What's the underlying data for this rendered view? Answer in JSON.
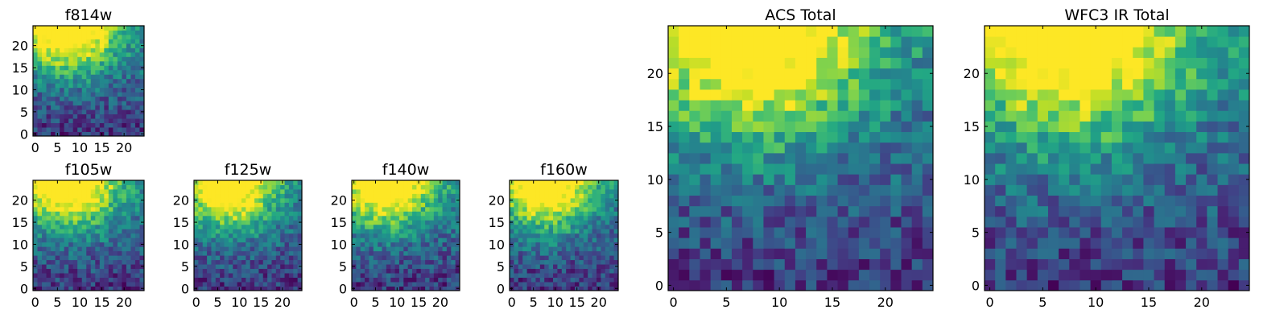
{
  "colormap": "viridis",
  "chart_data": [
    {
      "id": "f814w",
      "type": "heatmap",
      "title": "f814w",
      "grid_size": [
        25,
        25
      ],
      "xlim": [
        -0.5,
        24.5
      ],
      "ylim": [
        -0.5,
        24.5
      ],
      "xticks": [
        0,
        5,
        10,
        15,
        20
      ],
      "yticks": [
        0,
        5,
        10,
        15,
        20
      ],
      "grid": false
    },
    {
      "id": "f105w",
      "type": "heatmap",
      "title": "f105w",
      "grid_size": [
        25,
        25
      ],
      "xlim": [
        -0.5,
        24.5
      ],
      "ylim": [
        -0.5,
        24.5
      ],
      "xticks": [
        0,
        5,
        10,
        15,
        20
      ],
      "yticks": [
        0,
        5,
        10,
        15,
        20
      ],
      "grid": false
    },
    {
      "id": "f125w",
      "type": "heatmap",
      "title": "f125w",
      "grid_size": [
        25,
        25
      ],
      "xlim": [
        -0.5,
        24.5
      ],
      "ylim": [
        -0.5,
        24.5
      ],
      "xticks": [
        0,
        5,
        10,
        15,
        20
      ],
      "yticks": [
        0,
        5,
        10,
        15,
        20
      ],
      "grid": false
    },
    {
      "id": "f140w",
      "type": "heatmap",
      "title": "f140w",
      "grid_size": [
        25,
        25
      ],
      "xlim": [
        -0.5,
        24.5
      ],
      "ylim": [
        -0.5,
        24.5
      ],
      "xticks": [
        0,
        5,
        10,
        15,
        20
      ],
      "yticks": [
        0,
        5,
        10,
        15,
        20
      ],
      "grid": false
    },
    {
      "id": "f160w",
      "type": "heatmap",
      "title": "f160w",
      "grid_size": [
        25,
        25
      ],
      "xlim": [
        -0.5,
        24.5
      ],
      "ylim": [
        -0.5,
        24.5
      ],
      "xticks": [
        0,
        5,
        10,
        15,
        20
      ],
      "yticks": [
        0,
        5,
        10,
        15,
        20
      ],
      "grid": false
    },
    {
      "id": "acs",
      "type": "heatmap",
      "title": "ACS Total",
      "grid_size": [
        25,
        25
      ],
      "xlim": [
        -0.5,
        24.5
      ],
      "ylim": [
        -0.5,
        24.5
      ],
      "xticks": [
        0,
        5,
        10,
        15,
        20
      ],
      "yticks": [
        0,
        5,
        10,
        15,
        20
      ],
      "grid": false
    },
    {
      "id": "wfc3",
      "type": "heatmap",
      "title": "WFC3 IR Total",
      "grid_size": [
        25,
        25
      ],
      "xlim": [
        -0.5,
        24.5
      ],
      "ylim": [
        -0.5,
        24.5
      ],
      "xticks": [
        0,
        5,
        10,
        15,
        20
      ],
      "yticks": [
        0,
        5,
        10,
        15,
        20
      ],
      "grid": false
    }
  ]
}
